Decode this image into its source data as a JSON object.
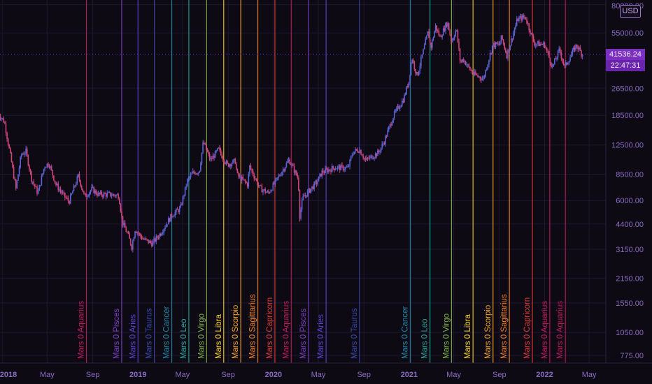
{
  "chart_data": {
    "type": "candlestick",
    "symbol_currency": "USD",
    "last_price": "41536.24",
    "countdown": "22:47:31",
    "y_scale": "log",
    "ylim": [
      700,
      85000
    ],
    "xlim": [
      "2017-12-25",
      "2022-06-15"
    ],
    "y_ticks": [
      "80000.00",
      "55000.00",
      "26500.00",
      "18500.00",
      "12500.00",
      "8500.00",
      "6000.00",
      "4400.00",
      "3150.00",
      "2150.00",
      "1550.00",
      "1050.00",
      "775.00"
    ],
    "x_ticks": [
      {
        "label": "2018",
        "date": "2018-01-01",
        "bold": true
      },
      {
        "label": "May",
        "date": "2018-05-01",
        "bold": false
      },
      {
        "label": "Sep",
        "date": "2018-09-01",
        "bold": false
      },
      {
        "label": "2019",
        "date": "2019-01-01",
        "bold": true
      },
      {
        "label": "May",
        "date": "2019-05-01",
        "bold": false
      },
      {
        "label": "Sep",
        "date": "2019-09-01",
        "bold": false
      },
      {
        "label": "2020",
        "date": "2020-01-01",
        "bold": true
      },
      {
        "label": "May",
        "date": "2020-05-01",
        "bold": false
      },
      {
        "label": "Sep",
        "date": "2020-09-01",
        "bold": false
      },
      {
        "label": "2021",
        "date": "2021-01-01",
        "bold": true
      },
      {
        "label": "May",
        "date": "2021-05-01",
        "bold": false
      },
      {
        "label": "Sep",
        "date": "2021-09-01",
        "bold": false
      },
      {
        "label": "2022",
        "date": "2022-01-01",
        "bold": true
      },
      {
        "label": "May",
        "date": "2022-05-01",
        "bold": false
      }
    ],
    "price_path": [
      [
        "2017-12-20",
        19000
      ],
      [
        "2018-01-06",
        17000
      ],
      [
        "2018-01-20",
        11500
      ],
      [
        "2018-02-06",
        7000
      ],
      [
        "2018-02-20",
        11000
      ],
      [
        "2018-03-05",
        11500
      ],
      [
        "2018-03-20",
        8000
      ],
      [
        "2018-04-06",
        6600
      ],
      [
        "2018-04-24",
        9500
      ],
      [
        "2018-05-06",
        9800
      ],
      [
        "2018-05-25",
        7400
      ],
      [
        "2018-06-15",
        6400
      ],
      [
        "2018-06-29",
        5900
      ],
      [
        "2018-07-24",
        8300
      ],
      [
        "2018-08-10",
        6300
      ],
      [
        "2018-08-30",
        7000
      ],
      [
        "2018-09-15",
        6500
      ],
      [
        "2018-10-15",
        6500
      ],
      [
        "2018-11-10",
        6400
      ],
      [
        "2018-11-20",
        4500
      ],
      [
        "2018-12-05",
        3800
      ],
      [
        "2018-12-15",
        3250
      ],
      [
        "2018-12-24",
        4100
      ],
      [
        "2019-01-15",
        3600
      ],
      [
        "2019-02-08",
        3400
      ],
      [
        "2019-03-01",
        3850
      ],
      [
        "2019-04-02",
        4950
      ],
      [
        "2019-04-25",
        5400
      ],
      [
        "2019-05-14",
        7800
      ],
      [
        "2019-05-30",
        8700
      ],
      [
        "2019-06-15",
        8800
      ],
      [
        "2019-06-26",
        13000
      ],
      [
        "2019-07-15",
        10200
      ],
      [
        "2019-08-06",
        11800
      ],
      [
        "2019-08-29",
        9600
      ],
      [
        "2019-09-20",
        10100
      ],
      [
        "2019-09-25",
        8400
      ],
      [
        "2019-10-24",
        7400
      ],
      [
        "2019-10-28",
        9500
      ],
      [
        "2019-11-25",
        7100
      ],
      [
        "2019-12-18",
        6600
      ],
      [
        "2020-01-10",
        7900
      ],
      [
        "2020-02-12",
        10300
      ],
      [
        "2020-03-08",
        8000
      ],
      [
        "2020-03-12",
        4900
      ],
      [
        "2020-03-20",
        6200
      ],
      [
        "2020-04-28",
        7700
      ],
      [
        "2020-05-10",
        8700
      ],
      [
        "2020-06-15",
        9300
      ],
      [
        "2020-07-20",
        9200
      ],
      [
        "2020-08-02",
        11400
      ],
      [
        "2020-08-20",
        11800
      ],
      [
        "2020-09-05",
        10200
      ],
      [
        "2020-10-10",
        11300
      ],
      [
        "2020-10-25",
        13000
      ],
      [
        "2020-11-20",
        18500
      ],
      [
        "2020-12-17",
        23000
      ],
      [
        "2020-12-31",
        29000
      ],
      [
        "2021-01-08",
        40000
      ],
      [
        "2021-01-22",
        31000
      ],
      [
        "2021-02-10",
        45000
      ],
      [
        "2021-02-21",
        56000
      ],
      [
        "2021-02-28",
        45000
      ],
      [
        "2021-03-13",
        60000
      ],
      [
        "2021-03-25",
        52000
      ],
      [
        "2021-04-14",
        63500
      ],
      [
        "2021-04-25",
        49000
      ],
      [
        "2021-05-08",
        58000
      ],
      [
        "2021-05-19",
        37000
      ],
      [
        "2021-05-26",
        39000
      ],
      [
        "2021-06-22",
        32000
      ],
      [
        "2021-07-20",
        30000
      ],
      [
        "2021-08-14",
        47000
      ],
      [
        "2021-08-31",
        47000
      ],
      [
        "2021-09-07",
        52000
      ],
      [
        "2021-09-21",
        41000
      ],
      [
        "2021-10-20",
        66000
      ],
      [
        "2021-11-10",
        68000
      ],
      [
        "2021-12-04",
        48000
      ],
      [
        "2022-01-01",
        47000
      ],
      [
        "2022-01-22",
        35000
      ],
      [
        "2022-02-10",
        44000
      ],
      [
        "2022-02-24",
        35000
      ],
      [
        "2022-03-28",
        47000
      ],
      [
        "2022-04-10",
        42000
      ],
      [
        "2022-04-15",
        41536
      ]
    ],
    "ingress_lines": [
      {
        "label": "Mars 0 Aquarius",
        "date": "2018-08-15",
        "color": "#c2185b"
      },
      {
        "label": "Mars 0 Pisces",
        "date": "2018-11-18",
        "color": "#7b3fc4"
      },
      {
        "label": "Mars 0 Aries",
        "date": "2019-01-01",
        "color": "#5a42d6"
      },
      {
        "label": "Mars 0 Taurus",
        "date": "2019-02-14",
        "color": "#3949ab"
      },
      {
        "label": "Mars 0 Cancer",
        "date": "2019-04-02",
        "color": "#1e88a8"
      },
      {
        "label": "Mars 0 Leo",
        "date": "2019-05-18",
        "color": "#26a69a"
      },
      {
        "label": "Mars 0 Virgo",
        "date": "2019-07-05",
        "color": "#7cb342"
      },
      {
        "label": "Mars 0 Libra",
        "date": "2019-08-20",
        "color": "#f9d423"
      },
      {
        "label": "Mars 0 Scorpio",
        "date": "2019-10-05",
        "color": "#f6a623"
      },
      {
        "label": "Mars 0 Sagittarius",
        "date": "2019-11-20",
        "color": "#f58220"
      },
      {
        "label": "Mars 0 Capricorn",
        "date": "2020-01-05",
        "color": "#e53935"
      },
      {
        "label": "Mars 0 Aquarius",
        "date": "2020-02-18",
        "color": "#c2185b"
      },
      {
        "label": "Mars 0 Pisces",
        "date": "2020-04-05",
        "color": "#7b3fc4"
      },
      {
        "label": "Mars 0 Aries",
        "date": "2020-05-22",
        "color": "#5a42d6"
      },
      {
        "label": "Mars 0 Taurus",
        "date": "2020-08-20",
        "color": "#3949ab"
      },
      {
        "label": "Mars 0 Cancer",
        "date": "2021-01-04",
        "color": "#1e88a8"
      },
      {
        "label": "Mars 0 Leo",
        "date": "2021-02-26",
        "color": "#26a69a"
      },
      {
        "label": "Mars 0 Virgo",
        "date": "2021-04-25",
        "color": "#7cb342"
      },
      {
        "label": "Mars 0 Libra",
        "date": "2021-06-22",
        "color": "#f9d423"
      },
      {
        "label": "Mars 0 Scorpio",
        "date": "2021-08-15",
        "color": "#f6a623"
      },
      {
        "label": "Mars 0 Sagittarius",
        "date": "2021-09-28",
        "color": "#f58220"
      },
      {
        "label": "Mars 0 Capricorn",
        "date": "2021-11-29",
        "color": "#e53935"
      },
      {
        "label": "Mars 0 Aquarius",
        "date": "2022-01-15",
        "color": "#c2185b"
      },
      {
        "label": "Mars 0 Aquarius",
        "date": "2022-02-26",
        "color": "#c2185b"
      }
    ],
    "colors": {
      "background": "#0e0a14",
      "grid": "#1d1730",
      "axis_text": "#8a6bc2",
      "candle_up": "#5b63d6",
      "candle_down": "#d0457a",
      "price_line": "#7a2fc0",
      "price_tag_bg": "#7a2fc0",
      "price_tag_text": "#f1e8ff"
    }
  }
}
